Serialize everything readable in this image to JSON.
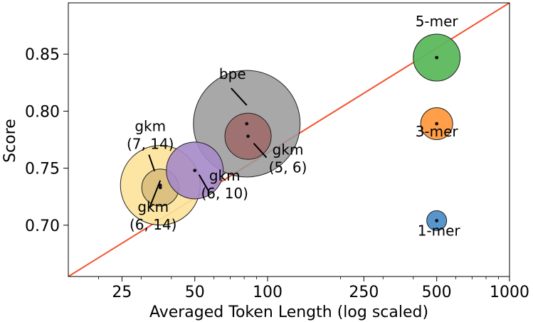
{
  "chart_data": {
    "type": "scatter",
    "title": "",
    "xlabel": "Averaged Token Length (log scaled)",
    "ylabel": "Score",
    "xscale": "log",
    "xlim": [
      15,
      1000
    ],
    "ylim": [
      0.655,
      0.895
    ],
    "xticks": [
      {
        "value": 25,
        "label": "25"
      },
      {
        "value": 50,
        "label": "50"
      },
      {
        "value": 100,
        "label": "100"
      },
      {
        "value": 250,
        "label": "250"
      },
      {
        "value": 500,
        "label": "500"
      },
      {
        "value": 1000,
        "label": "1000"
      }
    ],
    "yticks": [
      {
        "value": 0.7,
        "label": "0.70"
      },
      {
        "value": 0.75,
        "label": "0.75"
      },
      {
        "value": 0.8,
        "label": "0.80"
      },
      {
        "value": 0.85,
        "label": "0.85"
      }
    ],
    "trend_line": {
      "color": "#f4512c",
      "from": [
        15,
        0.655
      ],
      "to": [
        1000,
        0.895
      ]
    },
    "points": [
      {
        "id": "bpe",
        "x": 82,
        "y": 0.789,
        "size": 150,
        "color": "#999999",
        "alpha": 0.85
      },
      {
        "id": "gkm-7-14",
        "x": 36,
        "y": 0.735,
        "size": 112,
        "color": "#fde39a",
        "alpha": 0.9
      },
      {
        "id": "gkm-6-14",
        "x": 36,
        "y": 0.733,
        "size": 52,
        "color": "#d9bc7c",
        "alpha": 0.9
      },
      {
        "id": "gkm-6-10",
        "x": 50,
        "y": 0.748,
        "size": 80,
        "color": "#a68ac9",
        "alpha": 0.9
      },
      {
        "id": "gkm-5-6",
        "x": 83,
        "y": 0.778,
        "size": 65,
        "color": "#9e6e6e",
        "alpha": 0.95
      },
      {
        "id": "5-mer",
        "x": 500,
        "y": 0.847,
        "size": 66,
        "color": "#5cb85c",
        "alpha": 0.95
      },
      {
        "id": "3-mer",
        "x": 500,
        "y": 0.789,
        "size": 45,
        "color": "#ff9a40",
        "alpha": 0.95
      },
      {
        "id": "1-mer",
        "x": 500,
        "y": 0.704,
        "size": 28,
        "color": "#4f8fc9",
        "alpha": 0.95
      }
    ],
    "labels": [
      {
        "id": "bpe",
        "lines": [
          "bpe"
        ]
      },
      {
        "id": "gkm-7-14",
        "lines": [
          "gkm",
          "(7, 14)"
        ]
      },
      {
        "id": "gkm-6-14",
        "lines": [
          "gkm",
          "(6, 14)"
        ]
      },
      {
        "id": "gkm-6-10",
        "lines": [
          "gkm",
          "(6, 10)"
        ]
      },
      {
        "id": "gkm-5-6",
        "lines": [
          "gkm",
          "(5, 6)"
        ]
      },
      {
        "id": "5-mer",
        "lines": [
          "5-mer"
        ]
      },
      {
        "id": "3-mer",
        "lines": [
          "3-mer"
        ]
      },
      {
        "id": "1-mer",
        "lines": [
          "1-mer"
        ]
      }
    ]
  }
}
